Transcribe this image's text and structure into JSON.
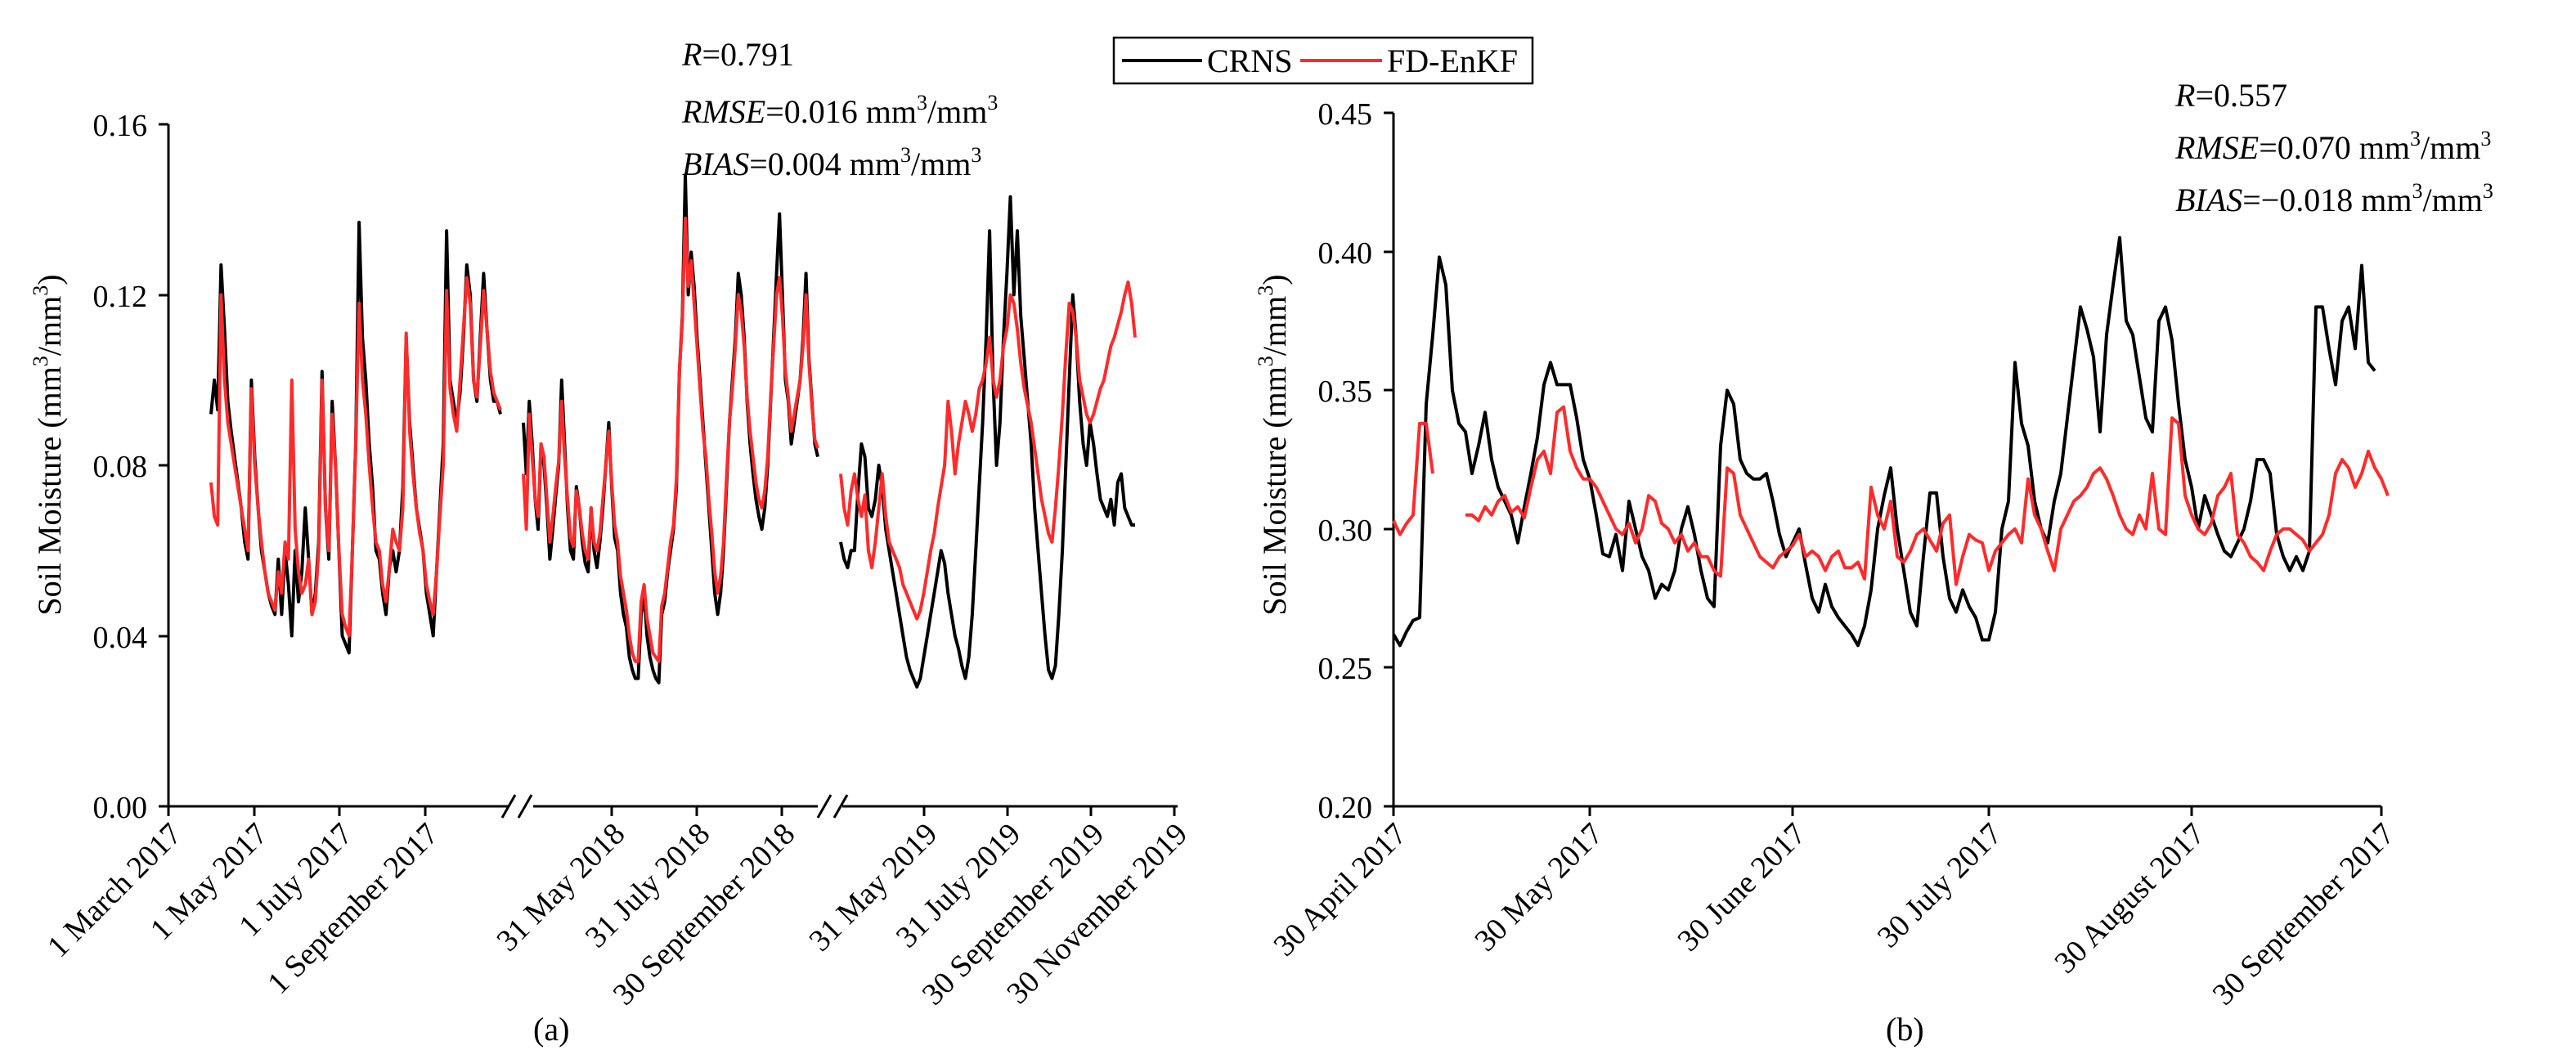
{
  "legend": [
    {
      "label": "CRNS",
      "color": "#000000"
    },
    {
      "label": "FD-EnKF",
      "color": "#ff2a2a"
    }
  ],
  "chart_data": [
    {
      "type": "line",
      "panel_label": "(a)",
      "ylabel_parts": [
        "Soil Moisture (mm",
        "3",
        "/mm",
        "3",
        ")"
      ],
      "ylim": [
        0.0,
        0.16
      ],
      "yticks": [
        "0.00",
        "0.04",
        "0.08",
        "0.12",
        "0.16"
      ],
      "x_axis_broken": true,
      "x_tick_labels": [
        "1 March 2017",
        "1 May 2017",
        "1 July 2017",
        "1 September 2017",
        "31 May 2018",
        "31 July 2018",
        "30 September 2018",
        "31 May 2019",
        "31 July 2019",
        "30 September 2019",
        "30 November 2019"
      ],
      "stats": [
        {
          "name": "R",
          "value": "=0.791",
          "unit": "",
          "sup": ""
        },
        {
          "name": "RMSE",
          "value": "=0.016 mm",
          "unit": "/mm",
          "sup": "3"
        },
        {
          "name": "BIAS",
          "value": "=0.004 mm",
          "unit": "/mm",
          "sup": "3"
        }
      ],
      "series": [
        {
          "name": "CRNS",
          "segments": [
            [
              0.092,
              0.1,
              0.093,
              0.127,
              0.112,
              0.095,
              0.088,
              0.082,
              0.076,
              0.07,
              0.062,
              0.058,
              0.1,
              0.082,
              0.07,
              0.06,
              0.055,
              0.05,
              0.047,
              0.045,
              0.058,
              0.045,
              0.06,
              0.052,
              0.04,
              0.06,
              0.048,
              0.055,
              0.07,
              0.058,
              0.045,
              0.05,
              0.062,
              0.102,
              0.07,
              0.058,
              0.095,
              0.08,
              0.06,
              0.04,
              0.038,
              0.036,
              0.06,
              0.085,
              0.137,
              0.11,
              0.1,
              0.085,
              0.075,
              0.06,
              0.058,
              0.05,
              0.045,
              0.056,
              0.06,
              0.055,
              0.06,
              0.075,
              0.11,
              0.09,
              0.08,
              0.07,
              0.065,
              0.06,
              0.05,
              0.045,
              0.04,
              0.055,
              0.07,
              0.085,
              0.135,
              0.1,
              0.095,
              0.09,
              0.097,
              0.11,
              0.127,
              0.12,
              0.1,
              0.095,
              0.11,
              0.125,
              0.112,
              0.1,
              0.095,
              0.095,
              0.092
            ],
            [
              0.09,
              0.078,
              0.095,
              0.085,
              0.072,
              0.065,
              0.085,
              0.08,
              0.07,
              0.058,
              0.065,
              0.073,
              0.08,
              0.1,
              0.085,
              0.07,
              0.06,
              0.058,
              0.075,
              0.07,
              0.062,
              0.057,
              0.055,
              0.07,
              0.06,
              0.056,
              0.062,
              0.07,
              0.08,
              0.09,
              0.075,
              0.063,
              0.06,
              0.05,
              0.045,
              0.042,
              0.035,
              0.032,
              0.03,
              0.03,
              0.045,
              0.05,
              0.04,
              0.035,
              0.032,
              0.03,
              0.029,
              0.045,
              0.048,
              0.055,
              0.06,
              0.065,
              0.075,
              0.102,
              0.115,
              0.148,
              0.12,
              0.13,
              0.122,
              0.11,
              0.1,
              0.09,
              0.08,
              0.07,
              0.06,
              0.05,
              0.045,
              0.05,
              0.06,
              0.075,
              0.09,
              0.1,
              0.11,
              0.125,
              0.12,
              0.11,
              0.095,
              0.085,
              0.078,
              0.072,
              0.068,
              0.065,
              0.07,
              0.08,
              0.095,
              0.11,
              0.125,
              0.139,
              0.12,
              0.1,
              0.095,
              0.085,
              0.09,
              0.095,
              0.1,
              0.11,
              0.125,
              0.105,
              0.095,
              0.085,
              0.082
            ],
            [
              0.062,
              0.058,
              0.056,
              0.06,
              0.06,
              0.074,
              0.085,
              0.082,
              0.07,
              0.068,
              0.072,
              0.08,
              0.075,
              0.065,
              0.06,
              0.055,
              0.05,
              0.045,
              0.04,
              0.035,
              0.032,
              0.03,
              0.028,
              0.03,
              0.035,
              0.04,
              0.045,
              0.05,
              0.055,
              0.06,
              0.057,
              0.05,
              0.045,
              0.04,
              0.037,
              0.033,
              0.03,
              0.035,
              0.045,
              0.06,
              0.075,
              0.09,
              0.11,
              0.135,
              0.1,
              0.08,
              0.09,
              0.11,
              0.125,
              0.143,
              0.12,
              0.135,
              0.115,
              0.105,
              0.095,
              0.085,
              0.07,
              0.06,
              0.05,
              0.04,
              0.032,
              0.03,
              0.033,
              0.045,
              0.06,
              0.08,
              0.1,
              0.12,
              0.11,
              0.095,
              0.085,
              0.08,
              0.09,
              0.085,
              0.078,
              0.072,
              0.07,
              0.068,
              0.072,
              0.066,
              0.076,
              0.078,
              0.07,
              0.068,
              0.066,
              0.066
            ]
          ]
        },
        {
          "name": "FD-EnKF",
          "segments": [
            [
              0.076,
              0.068,
              0.066,
              0.12,
              0.1,
              0.09,
              0.085,
              0.08,
              0.075,
              0.07,
              0.065,
              0.06,
              0.098,
              0.08,
              0.07,
              0.062,
              0.055,
              0.05,
              0.048,
              0.046,
              0.055,
              0.05,
              0.062,
              0.058,
              0.1,
              0.065,
              0.055,
              0.05,
              0.052,
              0.058,
              0.045,
              0.048,
              0.06,
              0.1,
              0.07,
              0.06,
              0.092,
              0.08,
              0.06,
              0.045,
              0.042,
              0.04,
              0.06,
              0.085,
              0.118,
              0.1,
              0.092,
              0.08,
              0.07,
              0.062,
              0.06,
              0.052,
              0.048,
              0.056,
              0.065,
              0.062,
              0.06,
              0.07,
              0.111,
              0.088,
              0.078,
              0.07,
              0.064,
              0.06,
              0.052,
              0.048,
              0.045,
              0.055,
              0.068,
              0.08,
              0.121,
              0.098,
              0.092,
              0.088,
              0.1,
              0.112,
              0.124,
              0.118,
              0.1,
              0.096,
              0.108,
              0.121,
              0.112,
              0.102,
              0.097,
              0.095,
              0.093
            ],
            [
              0.078,
              0.065,
              0.092,
              0.082,
              0.072,
              0.068,
              0.085,
              0.082,
              0.072,
              0.062,
              0.068,
              0.075,
              0.081,
              0.095,
              0.082,
              0.072,
              0.063,
              0.061,
              0.074,
              0.07,
              0.064,
              0.06,
              0.058,
              0.07,
              0.062,
              0.06,
              0.064,
              0.072,
              0.08,
              0.088,
              0.076,
              0.066,
              0.062,
              0.054,
              0.05,
              0.046,
              0.04,
              0.036,
              0.034,
              0.034,
              0.048,
              0.052,
              0.044,
              0.04,
              0.036,
              0.035,
              0.034,
              0.047,
              0.05,
              0.056,
              0.062,
              0.066,
              0.077,
              0.102,
              0.114,
              0.138,
              0.122,
              0.128,
              0.118,
              0.108,
              0.098,
              0.088,
              0.082,
              0.072,
              0.064,
              0.055,
              0.05,
              0.054,
              0.062,
              0.077,
              0.09,
              0.098,
              0.108,
              0.12,
              0.116,
              0.108,
              0.096,
              0.088,
              0.082,
              0.076,
              0.072,
              0.07,
              0.074,
              0.082,
              0.096,
              0.108,
              0.12,
              0.124,
              0.115,
              0.102,
              0.096,
              0.088,
              0.092,
              0.096,
              0.1,
              0.108,
              0.12,
              0.104,
              0.094,
              0.086,
              0.084
            ],
            [
              0.078,
              0.07,
              0.066,
              0.074,
              0.078,
              0.072,
              0.068,
              0.073,
              0.06,
              0.056,
              0.062,
              0.07,
              0.078,
              0.068,
              0.062,
              0.06,
              0.058,
              0.056,
              0.052,
              0.05,
              0.048,
              0.046,
              0.044,
              0.046,
              0.05,
              0.055,
              0.06,
              0.064,
              0.07,
              0.075,
              0.08,
              0.095,
              0.088,
              0.078,
              0.085,
              0.09,
              0.095,
              0.092,
              0.088,
              0.092,
              0.098,
              0.1,
              0.104,
              0.11,
              0.1,
              0.096,
              0.1,
              0.108,
              0.112,
              0.12,
              0.118,
              0.112,
              0.104,
              0.098,
              0.094,
              0.09,
              0.084,
              0.078,
              0.072,
              0.068,
              0.064,
              0.062,
              0.07,
              0.08,
              0.092,
              0.106,
              0.118,
              0.116,
              0.11,
              0.1,
              0.096,
              0.092,
              0.09,
              0.092,
              0.095,
              0.098,
              0.1,
              0.104,
              0.108,
              0.11,
              0.113,
              0.116,
              0.12,
              0.123,
              0.118,
              0.11
            ]
          ]
        }
      ]
    },
    {
      "type": "line",
      "panel_label": "(b)",
      "ylabel_parts": [
        "Soil Moisture (mm",
        "3",
        "/mm",
        "3",
        ")"
      ],
      "ylim": [
        0.2,
        0.45
      ],
      "yticks": [
        "0.20",
        "0.25",
        "0.30",
        "0.35",
        "0.40",
        "0.45"
      ],
      "x_tick_labels": [
        "30 April 2017",
        "30 May 2017",
        "30 June 2017",
        "30 July 2017",
        "30 August 2017",
        "30 September 2017"
      ],
      "stats": [
        {
          "name": "R",
          "value": "=0.557",
          "unit": "",
          "sup": ""
        },
        {
          "name": "RMSE",
          "value": "=0.070 mm",
          "unit": "/mm",
          "sup": "3"
        },
        {
          "name": "BIAS",
          "value": "=−0.018 mm",
          "unit": "/mm",
          "sup": "3"
        }
      ],
      "series": [
        {
          "name": "CRNS",
          "x_start_day": 0,
          "values": [
            0.262,
            0.258,
            0.263,
            0.267,
            0.268,
            0.345,
            0.37,
            0.398,
            0.388,
            0.35,
            0.338,
            0.335,
            0.32,
            0.33,
            0.342,
            0.325,
            0.315,
            0.31,
            0.305,
            0.295,
            0.308,
            0.32,
            0.333,
            0.352,
            0.36,
            0.352,
            0.352,
            0.352,
            0.34,
            0.325,
            0.318,
            0.305,
            0.291,
            0.29,
            0.298,
            0.285,
            0.31,
            0.3,
            0.29,
            0.285,
            0.275,
            0.28,
            0.278,
            0.285,
            0.3,
            0.308,
            0.298,
            0.285,
            0.275,
            0.272,
            0.33,
            0.35,
            0.345,
            0.325,
            0.32,
            0.318,
            0.318,
            0.32,
            0.31,
            0.298,
            0.29,
            0.295,
            0.3,
            0.287,
            0.275,
            0.27,
            0.28,
            0.272,
            0.268,
            0.265,
            0.262,
            0.258,
            0.265,
            0.278,
            0.3,
            0.312,
            0.322,
            0.3,
            0.285,
            0.27,
            0.265,
            0.29,
            0.313,
            0.313,
            0.29,
            0.275,
            0.27,
            0.278,
            0.272,
            0.268,
            0.26,
            0.26,
            0.27,
            0.3,
            0.31,
            0.36,
            0.338,
            0.33,
            0.31,
            0.3,
            0.295,
            0.31,
            0.32,
            0.34,
            0.36,
            0.38,
            0.372,
            0.362,
            0.335,
            0.37,
            0.388,
            0.405,
            0.375,
            0.37,
            0.355,
            0.34,
            0.335,
            0.375,
            0.38,
            0.368,
            0.345,
            0.325,
            0.315,
            0.3,
            0.312,
            0.305,
            0.298,
            0.292,
            0.29,
            0.295,
            0.3,
            0.31,
            0.325,
            0.325,
            0.32,
            0.298,
            0.29,
            0.285,
            0.29,
            0.285,
            0.292,
            0.38,
            0.38,
            0.365,
            0.352,
            0.375,
            0.38,
            0.365,
            0.395,
            0.36,
            0.357
          ]
        },
        {
          "name": "FD-EnKF",
          "x_start_day": 0,
          "values": [
            0.303,
            0.298,
            0.302,
            0.305,
            0.338,
            0.338,
            0.32,
            null,
            null,
            null,
            null,
            0.305,
            0.305,
            0.303,
            0.308,
            0.305,
            0.31,
            0.312,
            0.306,
            0.308,
            0.304,
            0.315,
            0.325,
            0.328,
            0.32,
            0.342,
            0.344,
            0.328,
            0.322,
            0.318,
            0.318,
            0.315,
            0.31,
            0.305,
            0.3,
            0.298,
            0.302,
            0.295,
            0.3,
            0.312,
            0.31,
            0.302,
            0.3,
            0.295,
            0.298,
            0.292,
            0.295,
            0.29,
            0.29,
            0.285,
            0.283,
            0.322,
            0.32,
            0.305,
            0.3,
            0.295,
            0.29,
            0.288,
            0.286,
            0.29,
            0.292,
            0.294,
            0.298,
            0.29,
            0.292,
            0.29,
            0.285,
            0.29,
            0.292,
            0.286,
            0.286,
            0.288,
            0.282,
            0.315,
            0.305,
            0.3,
            0.31,
            0.29,
            0.288,
            0.292,
            0.298,
            0.3,
            0.296,
            0.292,
            0.302,
            0.305,
            0.28,
            0.29,
            0.298,
            0.296,
            0.295,
            0.285,
            0.292,
            0.295,
            0.298,
            0.3,
            0.295,
            0.318,
            0.305,
            0.3,
            0.292,
            0.285,
            0.3,
            0.305,
            0.31,
            0.312,
            0.315,
            0.32,
            0.322,
            0.318,
            0.312,
            0.305,
            0.3,
            0.298,
            0.305,
            0.3,
            0.32,
            0.3,
            0.298,
            0.34,
            0.338,
            0.312,
            0.305,
            0.3,
            0.298,
            0.302,
            0.312,
            0.315,
            0.32,
            0.298,
            0.295,
            0.29,
            0.288,
            0.285,
            0.292,
            0.298,
            0.3,
            0.3,
            0.298,
            0.296,
            0.292,
            0.295,
            0.298,
            0.305,
            0.32,
            0.325,
            0.322,
            0.315,
            0.32,
            0.328,
            0.322,
            0.318,
            0.312
          ]
        }
      ]
    }
  ]
}
